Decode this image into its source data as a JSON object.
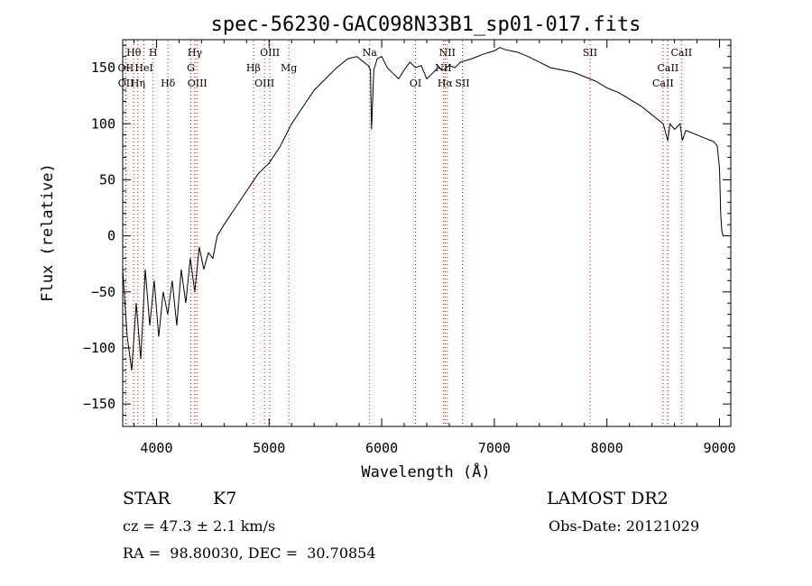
{
  "chart_data": {
    "type": "line",
    "title": "spec-56230-GAC098N33B1_sp01-017.fits",
    "xlabel": "Wavelength (Å)",
    "ylabel": "Flux (relative)",
    "xlim": [
      3700,
      9100
    ],
    "ylim": [
      -170,
      175
    ],
    "x_ticks": [
      4000,
      5000,
      6000,
      7000,
      8000,
      9000
    ],
    "y_ticks": [
      -150,
      -100,
      -50,
      0,
      50,
      100,
      150
    ],
    "grid": false,
    "line_color": "#000000",
    "marker_color": "#cc0000",
    "series": [
      {
        "x": [
          3700,
          3740,
          3780,
          3820,
          3860,
          3900,
          3940,
          3980,
          4020,
          4060,
          4100,
          4140,
          4180,
          4220,
          4260,
          4300,
          4340,
          4380,
          4420,
          4460,
          4500,
          4540,
          4600,
          4700,
          4800,
          4900,
          5000,
          5100,
          5200,
          5300,
          5400,
          5500,
          5600,
          5700,
          5780,
          5840,
          5880,
          5900,
          5910,
          5930,
          5960,
          6000,
          6050,
          6100,
          6150,
          6200,
          6250,
          6300,
          6350,
          6400,
          6450,
          6500,
          6550,
          6600,
          6650,
          6700,
          6800,
          6900,
          7000,
          7050,
          7100,
          7200,
          7300,
          7400,
          7500,
          7600,
          7700,
          7800,
          7900,
          8000,
          8100,
          8200,
          8300,
          8400,
          8500,
          8540,
          8560,
          8600,
          8650,
          8670,
          8700,
          8750,
          8800,
          8850,
          8900,
          8950,
          8980,
          9000,
          9010,
          9020,
          9030
        ],
        "y": [
          -30,
          -90,
          -120,
          -60,
          -110,
          -30,
          -80,
          -40,
          -90,
          -50,
          -70,
          -40,
          -80,
          -30,
          -60,
          -20,
          -50,
          -10,
          -30,
          -15,
          -20,
          0,
          10,
          25,
          40,
          55,
          65,
          80,
          100,
          115,
          130,
          140,
          150,
          158,
          160,
          155,
          152,
          148,
          95,
          148,
          158,
          160,
          150,
          145,
          140,
          148,
          155,
          150,
          152,
          140,
          145,
          150,
          148,
          152,
          150,
          155,
          158,
          162,
          165,
          168,
          166,
          164,
          160,
          155,
          150,
          148,
          146,
          142,
          138,
          132,
          128,
          122,
          116,
          108,
          100,
          85,
          100,
          95,
          100,
          85,
          94,
          92,
          90,
          88,
          86,
          84,
          80,
          60,
          20,
          5,
          0
        ]
      }
    ],
    "line_markers": [
      {
        "label": "Hθ",
        "x": 3798,
        "row": 1
      },
      {
        "label": "H",
        "x": 3970,
        "row": 1
      },
      {
        "label": "Hγ",
        "x": 4341,
        "row": 1
      },
      {
        "label": "OIII",
        "x": 5007,
        "row": 1
      },
      {
        "label": "Na",
        "x": 5893,
        "row": 1
      },
      {
        "label": "NII",
        "x": 6583,
        "row": 1
      },
      {
        "label": "SII",
        "x": 7850,
        "row": 1
      },
      {
        "label": "CaII",
        "x": 8662,
        "row": 1
      },
      {
        "label": "OII",
        "x": 3727,
        "row": 2
      },
      {
        "label": "HeI",
        "x": 3889,
        "row": 2
      },
      {
        "label": "G",
        "x": 4305,
        "row": 2
      },
      {
        "label": "Hβ",
        "x": 4861,
        "row": 2
      },
      {
        "label": "Mg",
        "x": 5175,
        "row": 2
      },
      {
        "label": "NII",
        "x": 6548,
        "row": 2
      },
      {
        "label": "CaII",
        "x": 8542,
        "row": 2
      },
      {
        "label": "OII",
        "x": 3729,
        "row": 3
      },
      {
        "label": "Hη",
        "x": 3835,
        "row": 3
      },
      {
        "label": "Hδ",
        "x": 4102,
        "row": 3
      },
      {
        "label": "OIII",
        "x": 4363,
        "row": 3
      },
      {
        "label": "OIII",
        "x": 4959,
        "row": 3
      },
      {
        "label": "OI",
        "x": 6300,
        "row": 3
      },
      {
        "label": "Hα",
        "x": 6563,
        "row": 3
      },
      {
        "label": "SII",
        "x": 6716,
        "row": 3
      },
      {
        "label": "CaII",
        "x": 8498,
        "row": 3
      }
    ]
  },
  "info": {
    "object_class": "STAR",
    "subclass": "K7",
    "survey": "LAMOST DR2",
    "cz": "cz = 47.3 ± 2.1 km/s",
    "obs_date": "Obs-Date: 20121029",
    "coords": "RA =  98.80030, DEC =  30.70854"
  }
}
